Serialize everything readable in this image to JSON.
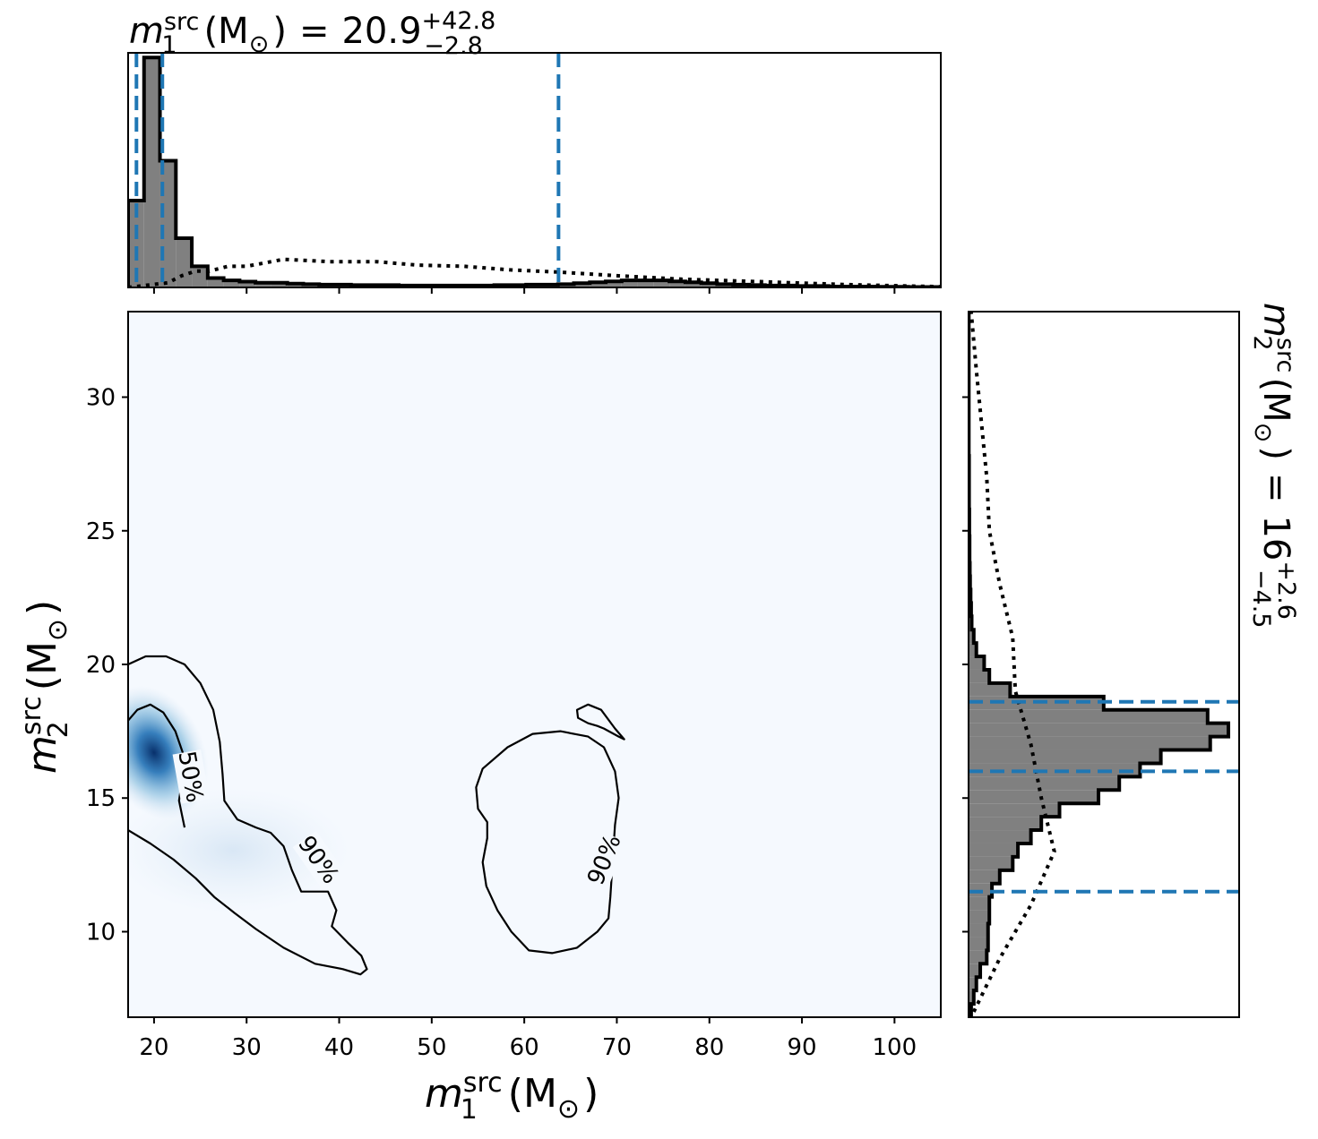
{
  "chart_data": {
    "type": "corner_plot",
    "colors": {
      "density": "#08519c",
      "posterior": "#808080",
      "quantile_line": "#1f77b4",
      "contour": "#000000"
    },
    "joint": {
      "type": "heatmap",
      "xlabel": {
        "var": "m",
        "sub": "1",
        "sup": "src",
        "unit": "(M",
        "unit_sub": "⊙",
        "unit_close": ")"
      },
      "ylabel": {
        "var": "m",
        "sub": "2",
        "sup": "src",
        "unit": "(M",
        "unit_sub": "⊙",
        "unit_close": ")"
      },
      "xlim": [
        17.2,
        105
      ],
      "ylim": [
        6.8,
        33.2
      ],
      "xticks": [
        20,
        30,
        40,
        50,
        60,
        70,
        80,
        90,
        100
      ],
      "xtick_labels": [
        "20",
        "30",
        "40",
        "50",
        "60",
        "70",
        "80",
        "90",
        "100"
      ],
      "yticks": [
        10,
        15,
        20,
        25,
        30
      ],
      "ytick_labels": [
        "10",
        "15",
        "20",
        "25",
        "30"
      ],
      "density_peak": {
        "x": 20.0,
        "y": 16.7
      },
      "contours": [
        {
          "label": "50%",
          "label_at": [
            24.0,
            15.8
          ],
          "points": [
            [
              17.2,
              17.9
            ],
            [
              18.2,
              18.3
            ],
            [
              19.6,
              18.5
            ],
            [
              21.0,
              18.2
            ],
            [
              22.3,
              17.5
            ],
            [
              23.2,
              16.6
            ],
            [
              23.0,
              15.6
            ],
            [
              22.7,
              14.9
            ],
            [
              23.3,
              13.9
            ]
          ]
        },
        {
          "label": "90%",
          "label_at": [
            37.8,
            12.7
          ],
          "points": [
            [
              17.2,
              20.0
            ],
            [
              19.1,
              20.3
            ],
            [
              21.3,
              20.3
            ],
            [
              23.3,
              20.0
            ],
            [
              25.0,
              19.3
            ],
            [
              26.4,
              18.3
            ],
            [
              27.1,
              17.1
            ],
            [
              27.4,
              15.9
            ],
            [
              27.6,
              14.9
            ],
            [
              29.0,
              14.2
            ],
            [
              31.0,
              13.9
            ],
            [
              32.6,
              13.7
            ],
            [
              34.0,
              13.2
            ],
            [
              34.9,
              12.3
            ],
            [
              35.9,
              11.5
            ],
            [
              37.4,
              11.5
            ],
            [
              38.8,
              11.5
            ],
            [
              39.7,
              10.8
            ],
            [
              39.2,
              10.2
            ],
            [
              40.9,
              9.6
            ],
            [
              42.4,
              9.1
            ],
            [
              43.0,
              8.6
            ],
            [
              42.3,
              8.4
            ],
            [
              40.4,
              8.6
            ],
            [
              37.4,
              8.8
            ],
            [
              34.0,
              9.4
            ],
            [
              31.0,
              10.1
            ],
            [
              28.7,
              10.7
            ],
            [
              26.5,
              11.3
            ],
            [
              24.5,
              12.0
            ],
            [
              22.1,
              12.7
            ],
            [
              19.6,
              13.3
            ],
            [
              17.2,
              13.8
            ]
          ]
        },
        {
          "label": "90%",
          "label_at": [
            68.6,
            12.7
          ],
          "points": [
            [
              69.8,
              14.0
            ],
            [
              70.2,
              15.0
            ],
            [
              69.8,
              16.0
            ],
            [
              68.6,
              16.9
            ],
            [
              66.9,
              17.3
            ],
            [
              63.9,
              17.5
            ],
            [
              60.9,
              17.4
            ],
            [
              58.2,
              16.9
            ],
            [
              55.5,
              16.1
            ],
            [
              54.8,
              15.4
            ],
            [
              55.0,
              14.6
            ],
            [
              56.0,
              14.1
            ],
            [
              56.0,
              13.5
            ],
            [
              55.5,
              12.6
            ],
            [
              55.9,
              11.7
            ],
            [
              57.1,
              10.8
            ],
            [
              58.6,
              10.0
            ],
            [
              60.5,
              9.3
            ],
            [
              63.0,
              9.2
            ],
            [
              65.7,
              9.4
            ],
            [
              67.9,
              10.0
            ],
            [
              69.1,
              10.5
            ],
            [
              69.3,
              11.3
            ]
          ]
        },
        {
          "label": "",
          "label_at": null,
          "points": [
            [
              65.7,
              18.3
            ],
            [
              66.9,
              18.5
            ],
            [
              68.3,
              18.3
            ],
            [
              69.8,
              17.6
            ],
            [
              70.8,
              17.2
            ],
            [
              70.2,
              17.3
            ],
            [
              68.6,
              17.6
            ],
            [
              67.9,
              17.7
            ],
            [
              66.9,
              17.8
            ],
            [
              65.8,
              18.0
            ]
          ]
        }
      ]
    },
    "top_marginal": {
      "title": {
        "var": "m",
        "sub": "1",
        "sup": "src",
        "unit": "(M",
        "unit_sub": "⊙",
        "unit_close": ")",
        "equals": "=",
        "value": "20.9",
        "plus": "+42.8",
        "minus": "−2.8"
      },
      "posterior_bins": {
        "start": 17.2,
        "width": 1.72,
        "heights": [
          0.37,
          0.98,
          0.54,
          0.21,
          0.09,
          0.04,
          0.03,
          0.025,
          0.02,
          0.02,
          0.016,
          0.014,
          0.012,
          0.012,
          0.01,
          0.01,
          0.01,
          0.008,
          0.008,
          0.008,
          0.008,
          0.008,
          0.008,
          0.01,
          0.01,
          0.012,
          0.012,
          0.014,
          0.018,
          0.022,
          0.026,
          0.03,
          0.03,
          0.03,
          0.026,
          0.022,
          0.018,
          0.014,
          0.012,
          0.01,
          0.008,
          0.008,
          0.006,
          0.006,
          0.004,
          0.004,
          0.004,
          0.003,
          0.003,
          0.002,
          0.002
        ]
      },
      "prior_curve": [
        [
          17.2,
          0.0
        ],
        [
          21.5,
          0.02
        ],
        [
          23.0,
          0.05
        ],
        [
          24.5,
          0.07
        ],
        [
          26.0,
          0.07
        ],
        [
          28.0,
          0.09
        ],
        [
          30.0,
          0.09
        ],
        [
          34.0,
          0.12
        ],
        [
          39.0,
          0.11
        ],
        [
          44.0,
          0.11
        ],
        [
          48.5,
          0.095
        ],
        [
          53.5,
          0.09
        ],
        [
          58.5,
          0.075
        ],
        [
          64.0,
          0.065
        ],
        [
          70.0,
          0.05
        ],
        [
          77.0,
          0.035
        ],
        [
          85.0,
          0.025
        ],
        [
          95.0,
          0.012
        ],
        [
          105.0,
          0.003
        ]
      ],
      "quantile_lines": [
        18.1,
        20.9,
        63.7
      ],
      "ymax": 1.0,
      "xticks": [
        20,
        30,
        40,
        50,
        60,
        70,
        80,
        90,
        100
      ]
    },
    "right_marginal": {
      "label": {
        "var": "m",
        "sub": "2",
        "sup": "src",
        "unit": "(M",
        "unit_sub": "⊙",
        "unit_close": ")",
        "equals": "=",
        "value": "16",
        "plus": "+2.6",
        "minus": "−4.5"
      },
      "posterior_bins": {
        "start": 6.8,
        "width": 0.5,
        "heights": [
          0.01,
          0.02,
          0.03,
          0.045,
          0.07,
          0.075,
          0.075,
          0.08,
          0.08,
          0.09,
          0.12,
          0.17,
          0.19,
          0.24,
          0.28,
          0.35,
          0.5,
          0.58,
          0.66,
          0.74,
          0.93,
          1.0,
          0.92,
          0.52,
          0.16,
          0.08,
          0.06,
          0.03,
          0.02,
          0.012,
          0.01,
          0.008,
          0.006,
          0.005,
          0.004,
          0.004,
          0.003,
          0.003,
          0.002,
          0.002,
          0.002,
          0.002,
          0.001,
          0.001,
          0.001,
          0.001,
          0.001,
          0.001,
          0.001,
          0.001,
          0.001,
          0.001,
          0.001
        ]
      },
      "prior_curve": [
        [
          7.0,
          0.02
        ],
        [
          9.0,
          0.12
        ],
        [
          11.0,
          0.24
        ],
        [
          13.0,
          0.33
        ],
        [
          15.0,
          0.28
        ],
        [
          17.0,
          0.24
        ],
        [
          19.0,
          0.18
        ],
        [
          21.0,
          0.17
        ],
        [
          23.0,
          0.12
        ],
        [
          25.0,
          0.08
        ],
        [
          27.0,
          0.07
        ],
        [
          29.0,
          0.05
        ],
        [
          31.0,
          0.03
        ],
        [
          33.2,
          0.01
        ]
      ],
      "quantile_lines": [
        11.5,
        16.0,
        18.6
      ],
      "xmax": 1.0,
      "yticks": [
        10,
        15,
        20,
        25,
        30
      ]
    }
  }
}
